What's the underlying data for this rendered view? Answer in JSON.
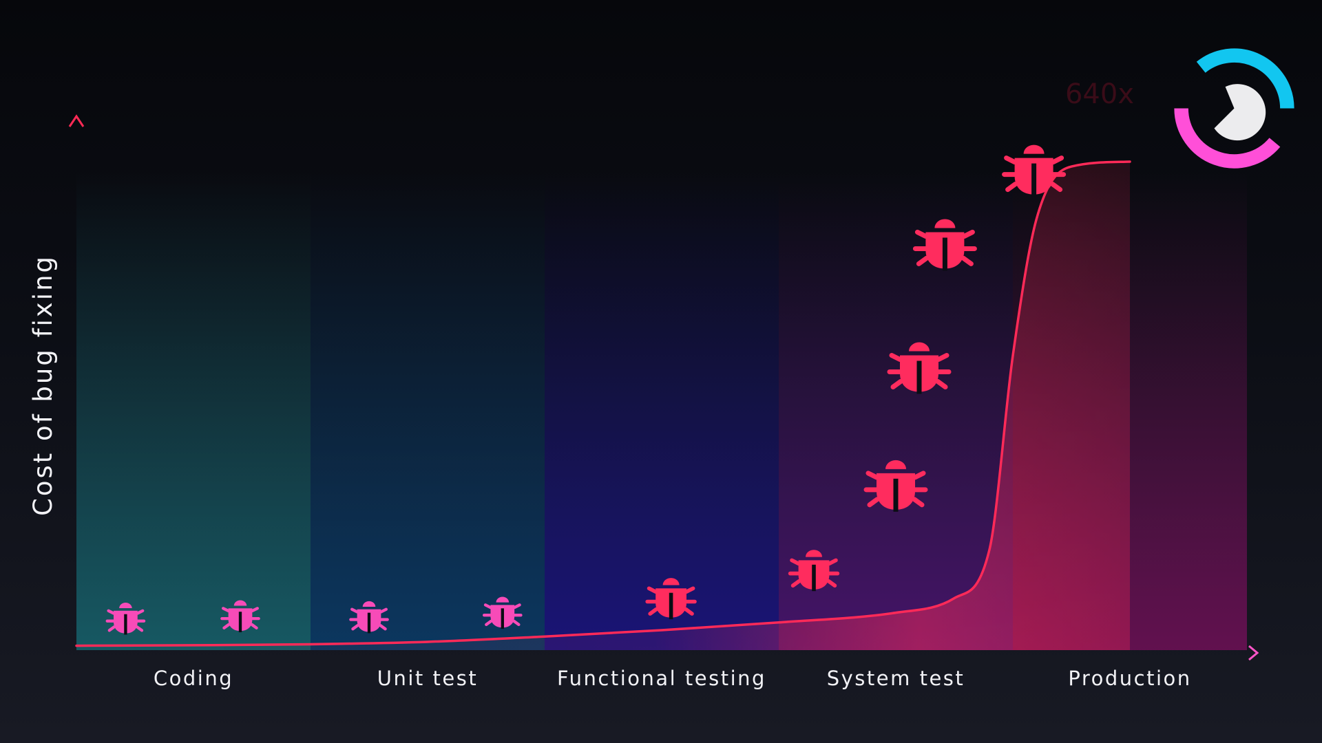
{
  "chart_data": {
    "type": "line",
    "ylabel": "Cost of bug fixing",
    "categories": [
      "Coding",
      "Unit test",
      "Functional testing",
      "System test",
      "Production"
    ],
    "series": [
      {
        "x": [
          0,
          0.5,
          1,
          1.5,
          2,
          2.5,
          3,
          3.5,
          3.75,
          3.9,
          4,
          4.1,
          4.25,
          4.5
        ],
        "values": [
          0.2,
          0.3,
          0.5,
          1,
          2.1,
          3.4,
          5,
          7,
          10,
          20,
          60,
          88,
          99,
          100
        ]
      }
    ],
    "bug_markers": [
      {
        "x": 0.21,
        "y": 6,
        "size": "small"
      },
      {
        "x": 0.7,
        "y": 6.5,
        "size": "small"
      },
      {
        "x": 1.25,
        "y": 6.3,
        "size": "small"
      },
      {
        "x": 1.82,
        "y": 7.2,
        "size": "small"
      },
      {
        "x": 2.54,
        "y": 10.2,
        "size": "medium"
      },
      {
        "x": 3.15,
        "y": 16,
        "size": "medium"
      },
      {
        "x": 3.5,
        "y": 33.5,
        "size": "large"
      },
      {
        "x": 3.6,
        "y": 57.8,
        "size": "large"
      },
      {
        "x": 3.71,
        "y": 83.2,
        "size": "large"
      },
      {
        "x": 4.09,
        "y": 98.5,
        "size": "large"
      }
    ],
    "annotation": "640x",
    "ylim": [
      0,
      100
    ],
    "colors": {
      "y_axis_top": "#ff2a55",
      "y_axis_bottom": "#2fc9f4",
      "x_axis_left": "#36c6f4",
      "x_axis_right": "#ff55c8",
      "curve": "#ff2a58",
      "bug_small": "#f74bb8",
      "bug_large": "#ff2c5e",
      "band_coding": "#16606a",
      "band_unit_test": "#0a3a66",
      "band_functional": "#1a1480",
      "band_system": "#4a1470",
      "band_production": "#6a1054"
    }
  },
  "logo": {
    "name": "logo-mark",
    "colors": {
      "ring_top": "#12c6f0",
      "ring_bottom": "#ff4fd8",
      "center": "#ececee"
    }
  }
}
